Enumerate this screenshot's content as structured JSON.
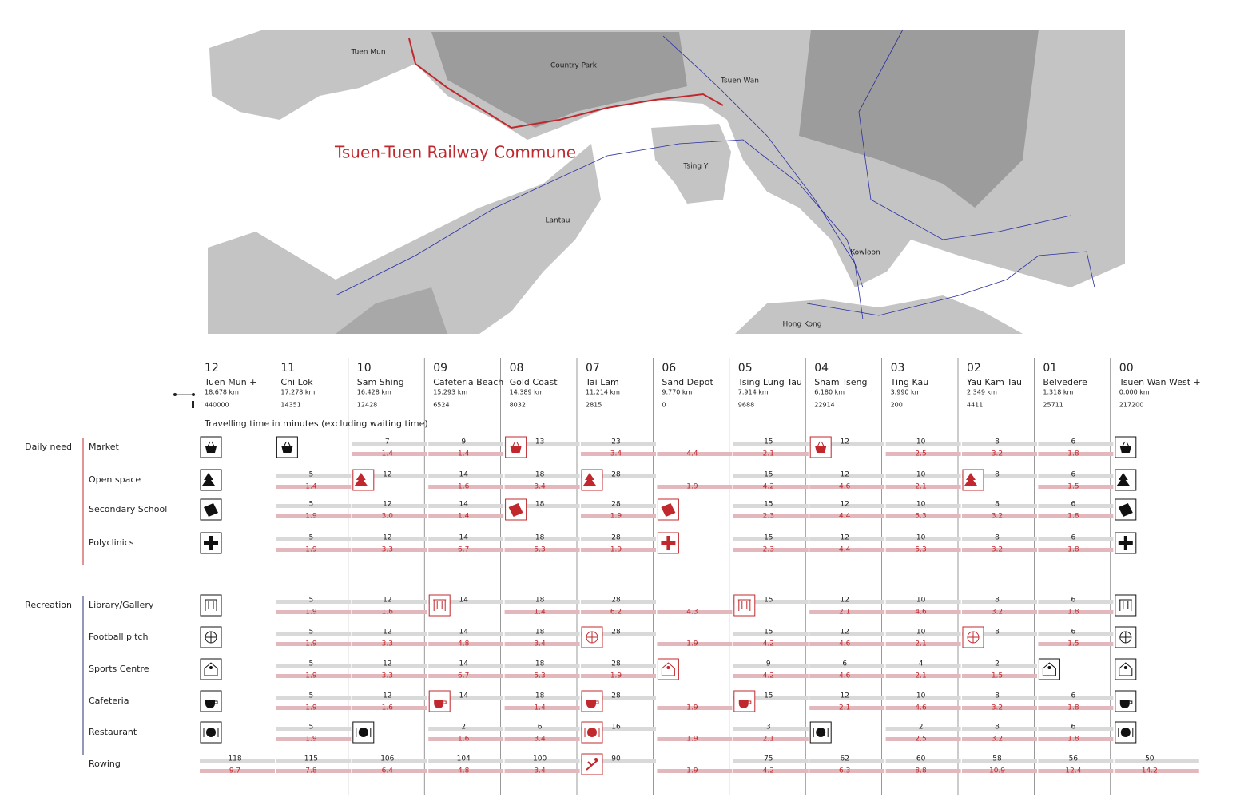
{
  "map": {
    "title": "Tsuen-Tuen Railway Commune",
    "labels": [
      "Tuen Mun",
      "Country Park",
      "Tsuen Wan",
      "Tsing Yi",
      "Lantau",
      "Kowloon",
      "Hong Kong"
    ]
  },
  "stations": [
    {
      "number": "12",
      "name": "Tuen Mun +",
      "distance": "18.678 km",
      "population": "440000"
    },
    {
      "number": "11",
      "name": "Chi Lok",
      "distance": "17.278 km",
      "population": "14351"
    },
    {
      "number": "10",
      "name": "Sam Shing",
      "distance": "16.428 km",
      "population": "12428"
    },
    {
      "number": "09",
      "name": "Cafeteria Beach",
      "distance": "15.293 km",
      "population": "6524"
    },
    {
      "number": "08",
      "name": "Gold Coast",
      "distance": "14.389 km",
      "population": "8032"
    },
    {
      "number": "07",
      "name": "Tai Lam",
      "distance": "11.214 km",
      "population": "2815"
    },
    {
      "number": "06",
      "name": "Sand Depot",
      "distance": "9.770 km",
      "population": "0"
    },
    {
      "number": "05",
      "name": "Tsing Lung Tau",
      "distance": "7.914 km",
      "population": "9688"
    },
    {
      "number": "04",
      "name": "Sham Tseng",
      "distance": "6.180 km",
      "population": "22914"
    },
    {
      "number": "03",
      "name": "Ting Kau",
      "distance": "3.990 km",
      "population": "200"
    },
    {
      "number": "02",
      "name": "Yau Kam Tau",
      "distance": "2.349 km",
      "population": "4411"
    },
    {
      "number": "01",
      "name": "Belvedere",
      "distance": "1.318 km",
      "population": "25711"
    },
    {
      "number": "00",
      "name": "Tsuen Wan West +",
      "distance": "0.000 km",
      "population": "217200"
    }
  ],
  "caption": "Travelling time in minutes (excluding waiting time)",
  "groups": [
    {
      "label": "Daily need",
      "color": "#c0282d",
      "rows": [
        {
          "label": "Market",
          "icons": [
            0,
            1,
            4,
            8,
            12
          ],
          "highlight": [
            4,
            8
          ],
          "top": [
            null,
            null,
            "7",
            "9",
            "13",
            "23",
            null,
            "15",
            "12",
            "10",
            "8",
            "6",
            null
          ],
          "bottom": [
            null,
            null,
            "1.4",
            "1.4",
            null,
            "3.4",
            "4.4",
            "2.1",
            null,
            "2.5",
            "3.2",
            "1.8",
            null
          ]
        },
        {
          "label": "Open space",
          "icons": [
            0,
            2,
            5,
            10,
            12
          ],
          "highlight": [
            2,
            5,
            10
          ],
          "top": [
            null,
            "5",
            "12",
            "14",
            "18",
            "28",
            null,
            "15",
            "12",
            "10",
            "8",
            "6",
            null
          ],
          "bottom": [
            null,
            "1.4",
            null,
            "1.6",
            "3.4",
            null,
            "1.9",
            "4.2",
            "4.6",
            "2.1",
            null,
            "1.5",
            null
          ]
        },
        {
          "label": "Secondary School",
          "icons": [
            0,
            4,
            6,
            12
          ],
          "highlight": [
            4,
            6
          ],
          "top": [
            null,
            "5",
            "12",
            "14",
            "18",
            "28",
            null,
            "15",
            "12",
            "10",
            "8",
            "6",
            null
          ],
          "bottom": [
            null,
            "1.9",
            "3.0",
            "1.4",
            null,
            "1.9",
            null,
            "2.3",
            "4.4",
            "5.3",
            "3.2",
            "1.8",
            null
          ]
        },
        {
          "label": "Polyclinics",
          "icons": [
            0,
            6,
            12
          ],
          "highlight": [
            6
          ],
          "top": [
            null,
            "5",
            "12",
            "14",
            "18",
            "28",
            null,
            "15",
            "12",
            "10",
            "8",
            "6",
            null
          ],
          "bottom": [
            null,
            "1.9",
            "3.3",
            "6.7",
            "5.3",
            "1.9",
            null,
            "2.3",
            "4.4",
            "5.3",
            "3.2",
            "1.8",
            null
          ]
        }
      ]
    },
    {
      "label": "Recreation",
      "color": "#2a2f7a",
      "rows": [
        {
          "label": "Library/Gallery",
          "icons": [
            0,
            3,
            7,
            12
          ],
          "highlight": [
            3,
            7
          ],
          "top": [
            null,
            "5",
            "12",
            "14",
            "18",
            "28",
            null,
            "15",
            "12",
            "10",
            "8",
            "6",
            null
          ],
          "bottom": [
            null,
            "1.9",
            "1.6",
            null,
            "1.4",
            "6.2",
            "4.3",
            null,
            "2.1",
            "4.6",
            "3.2",
            "1.8",
            null
          ]
        },
        {
          "label": "Football pitch",
          "icons": [
            0,
            5,
            10,
            12
          ],
          "highlight": [
            5,
            10
          ],
          "top": [
            null,
            "5",
            "12",
            "14",
            "18",
            "28",
            null,
            "15",
            "12",
            "10",
            "8",
            "6",
            null
          ],
          "bottom": [
            null,
            "1.9",
            "3.3",
            "4.8",
            "3.4",
            null,
            "1.9",
            "4.2",
            "4.6",
            "2.1",
            null,
            "1.5",
            null
          ]
        },
        {
          "label": "Sports Centre",
          "icons": [
            0,
            6,
            11,
            12
          ],
          "highlight": [
            6
          ],
          "top": [
            null,
            "5",
            "12",
            "14",
            "18",
            "28",
            null,
            "9",
            "6",
            "4",
            "2",
            null,
            null
          ],
          "bottom": [
            null,
            "1.9",
            "3.3",
            "6.7",
            "5.3",
            "1.9",
            null,
            "4.2",
            "4.6",
            "2.1",
            "1.5",
            null,
            null
          ]
        },
        {
          "label": "Cafeteria",
          "icons": [
            0,
            3,
            5,
            7,
            12
          ],
          "highlight": [
            3,
            5,
            7
          ],
          "top": [
            null,
            "5",
            "12",
            "14",
            "18",
            "28",
            null,
            "15",
            "12",
            "10",
            "8",
            "6",
            null
          ],
          "bottom": [
            null,
            "1.9",
            "1.6",
            null,
            "1.4",
            null,
            "1.9",
            null,
            "2.1",
            "4.6",
            "3.2",
            "1.8",
            null
          ]
        },
        {
          "label": "Restaurant",
          "icons": [
            0,
            2,
            5,
            8,
            12
          ],
          "highlight": [
            5
          ],
          "top": [
            null,
            "5",
            null,
            "2",
            "6",
            "16",
            null,
            "3",
            null,
            "2",
            "8",
            "6",
            null
          ],
          "bottom": [
            null,
            "1.9",
            null,
            "1.6",
            "3.4",
            null,
            "1.9",
            "2.1",
            null,
            "2.5",
            "3.2",
            "1.8",
            null
          ]
        }
      ]
    }
  ],
  "extra_rows": [
    {
      "label": "Rowing",
      "icons": [
        5
      ],
      "highlight": [
        5
      ],
      "top": [
        "118",
        "115",
        "106",
        "104",
        "100",
        "90",
        null,
        "75",
        "62",
        "60",
        "58",
        "56",
        "50"
      ],
      "bottom": [
        "9.7",
        "7.8",
        "6.4",
        "4.8",
        "3.4",
        null,
        "1.9",
        "4.2",
        "6.3",
        "8.8",
        "10.9",
        "12.4",
        "14.2"
      ]
    }
  ]
}
